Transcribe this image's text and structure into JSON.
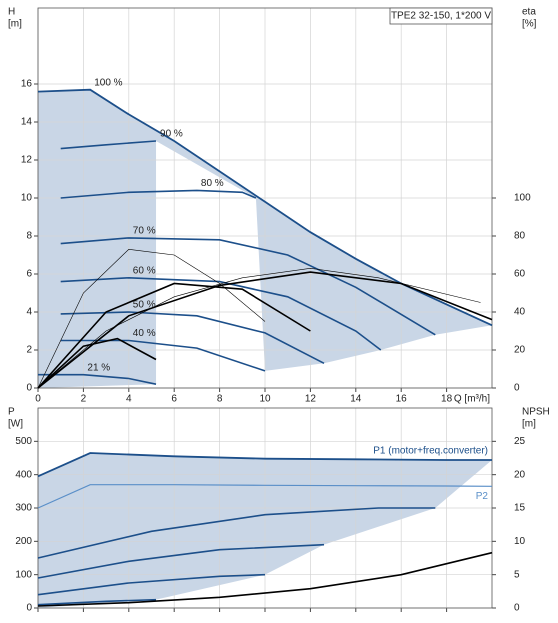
{
  "chart_data": [
    {
      "type": "line",
      "title": "TPE2 32-150, 1*200 V",
      "y_label": [
        "H",
        "[m]"
      ],
      "y2_label": [
        "eta",
        "[%]"
      ],
      "x_label": "Q [m³/h]",
      "xlim": [
        0,
        20
      ],
      "xticks": [
        0,
        2,
        4,
        6,
        8,
        10,
        12,
        14,
        16,
        18
      ],
      "x_tick_labels": true,
      "ylim": [
        0,
        20
      ],
      "yticks": [
        0,
        2,
        4,
        6,
        8,
        10,
        12,
        14,
        16
      ],
      "y2lim": [
        0,
        200
      ],
      "y2ticks": [
        0,
        20,
        40,
        60,
        80,
        100
      ],
      "grid": true,
      "shade": "#c9d6e6",
      "series": [
        {
          "role": "max",
          "label": "100 %",
          "color": "#1c4f8a",
          "x": [
            0,
            2.3,
            4,
            6,
            8,
            10,
            12,
            14,
            16,
            18,
            20
          ],
          "values": [
            15.6,
            15.7,
            14.4,
            13.0,
            11.4,
            9.8,
            8.2,
            6.8,
            5.5,
            4.4,
            3.3
          ]
        },
        {
          "role": "speed",
          "label": "90 %",
          "color": "#1c4f8a",
          "x": [
            1,
            3,
            5.2
          ],
          "values": [
            12.6,
            12.8,
            13.0
          ]
        },
        {
          "role": "speed",
          "label": "80 %",
          "color": "#1c4f8a",
          "x": [
            1,
            4,
            7,
            9,
            9.6
          ],
          "values": [
            10.0,
            10.3,
            10.4,
            10.3,
            10.0
          ]
        },
        {
          "role": "speed",
          "label": "70 %",
          "color": "#1c4f8a",
          "x": [
            1,
            4,
            8,
            11,
            14,
            17.5
          ],
          "values": [
            7.6,
            7.9,
            7.8,
            7.0,
            5.3,
            2.8
          ]
        },
        {
          "role": "speed",
          "label": "60 %",
          "color": "#1c4f8a",
          "x": [
            1,
            4,
            8,
            11,
            14,
            15.1
          ],
          "values": [
            5.6,
            5.8,
            5.6,
            4.8,
            3.0,
            2.0
          ]
        },
        {
          "role": "speed",
          "label": "50 %",
          "color": "#1c4f8a",
          "x": [
            1,
            4,
            7,
            10,
            12.6
          ],
          "values": [
            3.9,
            4.0,
            3.8,
            2.9,
            1.3
          ]
        },
        {
          "role": "speed",
          "label": "40 %",
          "color": "#1c4f8a",
          "x": [
            1,
            4,
            7,
            10
          ],
          "values": [
            2.5,
            2.5,
            2.1,
            0.9
          ]
        },
        {
          "role": "speed",
          "label": "21 %",
          "color": "#1c4f8a",
          "x": [
            0,
            2,
            4,
            5.2
          ],
          "values": [
            0.7,
            0.7,
            0.5,
            0.2
          ]
        },
        {
          "role": "eta",
          "axis": "y2",
          "color": "#000000",
          "x": [
            0,
            4,
            8,
            12,
            16,
            20
          ],
          "values": [
            0,
            38,
            54,
            61,
            55,
            36
          ]
        },
        {
          "role": "eta",
          "axis": "y2",
          "color": "#000000",
          "x": [
            0,
            3,
            6,
            9,
            12
          ],
          "values": [
            0,
            40,
            55,
            52,
            30
          ]
        },
        {
          "role": "eta",
          "axis": "y2",
          "color": "#000000",
          "x": [
            0,
            2,
            3.5,
            5.2
          ],
          "values": [
            0,
            22,
            26,
            15
          ]
        },
        {
          "role": "thin",
          "axis": "y2",
          "color": "#000000",
          "x": [
            0,
            3,
            6,
            9,
            12,
            15,
            19.5
          ],
          "values": [
            0,
            30,
            48,
            58,
            63,
            58,
            45
          ]
        },
        {
          "role": "thin",
          "axis": "y2",
          "color": "#000000",
          "x": [
            0,
            2,
            4,
            6,
            8,
            10
          ],
          "values": [
            0,
            50,
            73,
            70,
            55,
            35
          ]
        }
      ]
    },
    {
      "type": "line",
      "y_label": [
        "P",
        "[W]"
      ],
      "y2_label": [
        "NPSH",
        "[m]"
      ],
      "xlim": [
        0,
        20
      ],
      "xticks": [
        0,
        2,
        4,
        6,
        8,
        10,
        12,
        14,
        16,
        18
      ],
      "x_tick_labels": false,
      "ylim": [
        0,
        600
      ],
      "yticks": [
        0,
        100,
        200,
        300,
        400,
        500
      ],
      "y2lim": [
        0,
        30
      ],
      "y2ticks": [
        0,
        5,
        10,
        15,
        20,
        25
      ],
      "grid": true,
      "shade": "#c9d6e6",
      "series": [
        {
          "role": "max",
          "name": "P1 (motor+freq.converter)",
          "color": "#1c4f8a",
          "x": [
            0,
            2.3,
            6,
            10,
            14,
            18,
            20
          ],
          "values": [
            395,
            465,
            455,
            448,
            446,
            444,
            444
          ]
        },
        {
          "role": "p2",
          "name": "P2",
          "color": "#5a8fc8",
          "x": [
            0,
            2.3,
            6,
            10,
            14,
            18,
            20
          ],
          "values": [
            300,
            370,
            370,
            368,
            367,
            366,
            365
          ]
        },
        {
          "role": "speed",
          "color": "#1c4f8a",
          "x": [
            0,
            5,
            10,
            15,
            17.5
          ],
          "values": [
            150,
            230,
            280,
            300,
            300
          ]
        },
        {
          "role": "speed",
          "color": "#1c4f8a",
          "x": [
            0,
            4,
            8,
            12.6
          ],
          "values": [
            90,
            140,
            175,
            190
          ]
        },
        {
          "role": "speed",
          "color": "#1c4f8a",
          "x": [
            0,
            4,
            8,
            10
          ],
          "values": [
            40,
            75,
            95,
            100
          ]
        },
        {
          "role": "speed",
          "color": "#1c4f8a",
          "x": [
            0,
            3,
            5.2
          ],
          "values": [
            10,
            20,
            25
          ]
        },
        {
          "role": "eta",
          "axis": "y2",
          "color": "#000000",
          "x": [
            0,
            4,
            8,
            12,
            16,
            20
          ],
          "values": [
            0.3,
            0.8,
            1.6,
            2.9,
            5.0,
            8.3
          ]
        }
      ]
    }
  ]
}
